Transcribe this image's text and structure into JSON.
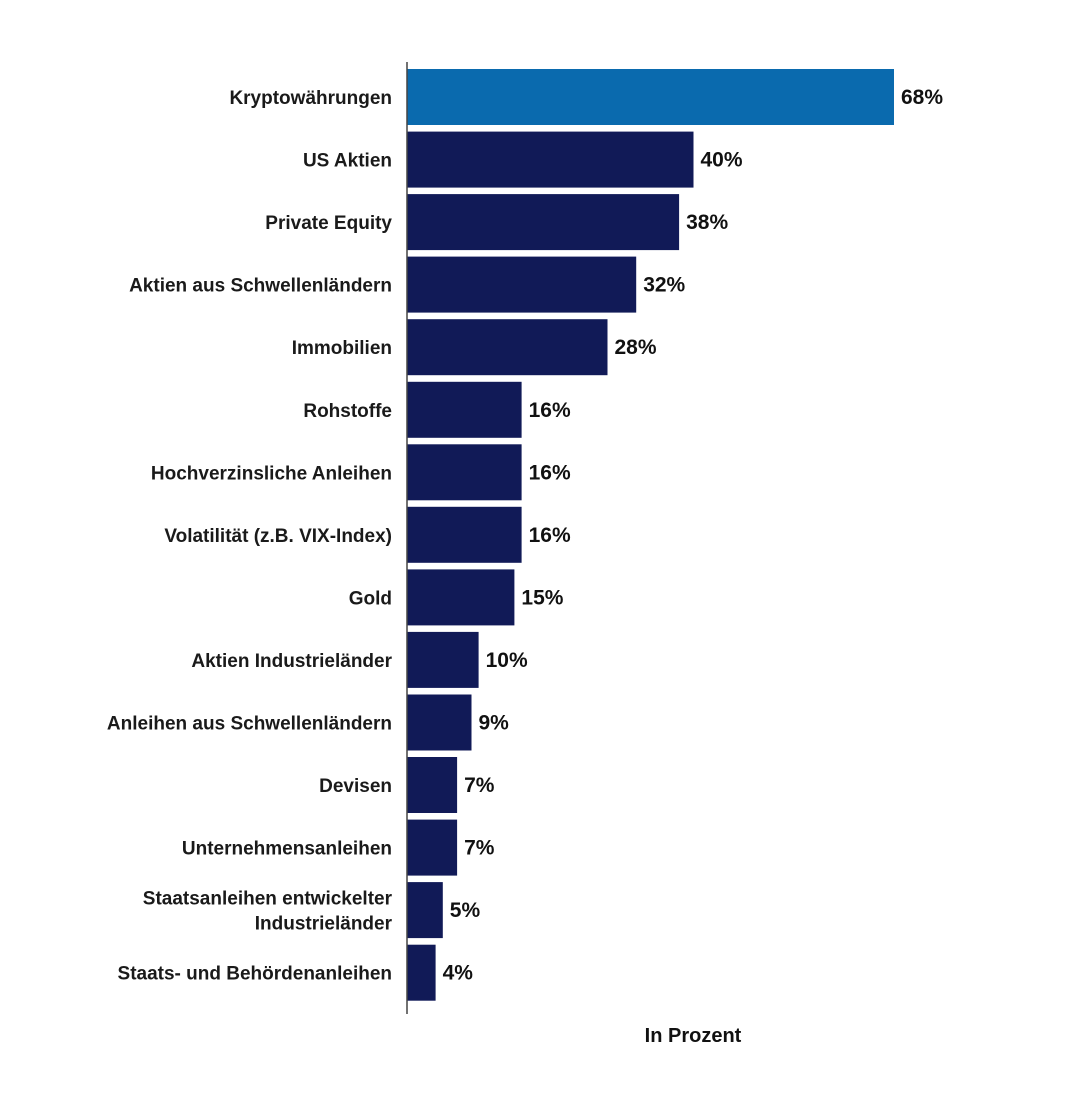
{
  "chart_data": {
    "type": "bar",
    "orientation": "horizontal",
    "categories": [
      [
        "Kryptowährungen"
      ],
      [
        "US Aktien"
      ],
      [
        "Private Equity"
      ],
      [
        "Aktien aus Schwellenländern"
      ],
      [
        "Immobilien"
      ],
      [
        "Rohstoffe"
      ],
      [
        "Hochverzinsliche Anleihen"
      ],
      [
        "Volatilität (z.B. VIX-Index)"
      ],
      [
        "Gold"
      ],
      [
        "Aktien Industrieländer"
      ],
      [
        "Anleihen aus Schwellenländern"
      ],
      [
        "Devisen"
      ],
      [
        "Unternehmensanleihen"
      ],
      [
        "Staatsanleihen entwickelter",
        "Industrieländer"
      ],
      [
        "Staats- und Behördenanleihen"
      ]
    ],
    "values": [
      68,
      40,
      38,
      32,
      28,
      16,
      16,
      16,
      15,
      10,
      9,
      7,
      7,
      5,
      4
    ],
    "value_labels": [
      "68%",
      "40%",
      "38%",
      "32%",
      "28%",
      "16%",
      "16%",
      "16%",
      "15%",
      "10%",
      "9%",
      "7%",
      "7%",
      "5%",
      "4%"
    ],
    "xlabel": "In Prozent",
    "xlim": [
      0,
      68
    ],
    "grid": false,
    "colors": {
      "highlight": "#0a6aae",
      "default": "#111a57",
      "axis": "#444444"
    },
    "highlight_index": 0
  }
}
